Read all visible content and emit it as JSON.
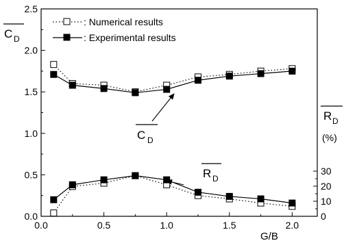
{
  "chart_data": {
    "type": "line",
    "xlabel": "G/B",
    "x_ticks": [
      "0.0",
      "0.5",
      "1.0",
      "1.5",
      "2.0"
    ],
    "xlim": [
      0,
      2.2
    ],
    "left_axis": {
      "label_main": "C",
      "label_sub": "D",
      "ticks": [
        "0.0",
        "0.5",
        "1.0",
        "1.5",
        "2.0",
        "2.5"
      ],
      "ylim": [
        0,
        2.5
      ]
    },
    "right_axis": {
      "label_main": "R",
      "label_sub": "D",
      "unit_label": "(%)",
      "ticks": [
        "0",
        "10",
        "20",
        "30"
      ],
      "ylim": [
        0,
        30
      ]
    },
    "legend": {
      "position": "top-left",
      "entries": [
        {
          "marker": "open-square",
          "line": "dotted",
          "text": ": Numerical results"
        },
        {
          "marker": "filled-square",
          "line": "solid",
          "text": ": Experimental results"
        }
      ]
    },
    "annotations": [
      {
        "main": "C",
        "sub": "D",
        "points_to": {
          "x": 0.75,
          "y": 1.49
        }
      },
      {
        "main": "R",
        "sub": "D",
        "points_to": {
          "x": 0.92,
          "y": 0.42
        }
      }
    ],
    "series": [
      {
        "name": "Numerical results",
        "quantity": "CD",
        "marker": "open-square",
        "line": "dotted",
        "x": [
          0.1,
          0.25,
          0.5,
          0.75,
          1.0,
          1.25,
          1.5,
          1.75,
          2.0
        ],
        "y": [
          1.83,
          1.6,
          1.58,
          1.5,
          1.58,
          1.68,
          1.71,
          1.75,
          1.78
        ]
      },
      {
        "name": "Experimental results",
        "quantity": "CD",
        "marker": "filled-square",
        "line": "solid",
        "x": [
          0.1,
          0.25,
          0.5,
          0.75,
          1.0,
          1.25,
          1.5,
          1.75,
          2.0
        ],
        "y": [
          1.71,
          1.58,
          1.54,
          1.49,
          1.53,
          1.64,
          1.69,
          1.72,
          1.75
        ]
      },
      {
        "name": "Numerical results",
        "quantity": "RD",
        "marker": "open-square",
        "line": "dotted",
        "x": [
          0.1,
          0.25,
          0.5,
          0.75,
          1.0,
          1.25,
          1.5,
          1.75,
          2.0
        ],
        "y": [
          0.04,
          0.36,
          0.4,
          0.49,
          0.38,
          0.25,
          0.21,
          0.16,
          0.12
        ]
      },
      {
        "name": "Experimental results",
        "quantity": "RD",
        "marker": "filled-square",
        "line": "solid",
        "x": [
          0.1,
          0.25,
          0.5,
          0.75,
          1.0,
          1.25,
          1.5,
          1.75,
          2.0
        ],
        "y": [
          0.2,
          0.38,
          0.44,
          0.49,
          0.44,
          0.29,
          0.24,
          0.21,
          0.16
        ]
      }
    ]
  }
}
